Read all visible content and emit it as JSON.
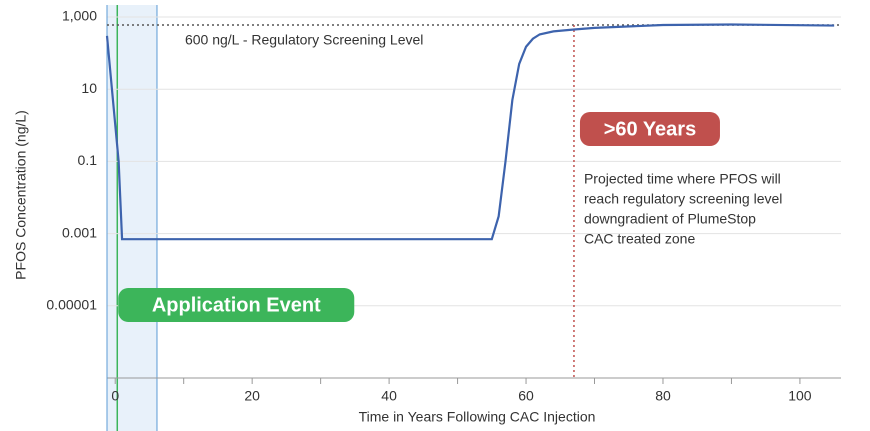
{
  "chart_data": {
    "type": "line",
    "x_label": "Time in Years Following CAC Injection",
    "y_label": "PFOS Concentration (ng/L)",
    "log_y": true,
    "grid": true,
    "xlim": [
      -1.2,
      106
    ],
    "ylim": [
      1e-07,
      1000
    ],
    "xticks": [
      0,
      20,
      40,
      60,
      80,
      100
    ],
    "x_minor_ticks": [
      10,
      30,
      50,
      70,
      90
    ],
    "yticks": [
      {
        "value": 1000,
        "label": "1,000"
      },
      10,
      0.1,
      0.001,
      1e-05
    ],
    "series": [
      {
        "name": "PFOS",
        "color": "#3d63ad",
        "x": [
          -1.2,
          0.5,
          1,
          55,
          56,
          57,
          58,
          59,
          60,
          61,
          62,
          64,
          67,
          70,
          80,
          90,
          105
        ],
        "values": [
          300,
          0.1,
          0.0007,
          0.0007,
          0.003,
          0.1,
          5,
          50,
          150,
          250,
          330,
          400,
          450,
          500,
          600,
          620,
          580
        ]
      }
    ],
    "threshold": {
      "value": 600,
      "label": "600 ng/L - Regulatory Screening Level",
      "color": "#555"
    },
    "marker": {
      "x": 67,
      "label": ">60 Years",
      "color": "#c0504d",
      "note": [
        "Projected time where PFOS will",
        "reach regulatory screening level",
        "downgradient of PlumeStop",
        "CAC treated zone"
      ]
    },
    "application": {
      "x_start": -1.2,
      "x_end": 6.1,
      "x_line": 0.3,
      "label": "Application Event",
      "color": "#3cb55a",
      "band_color": "#e8f1fa",
      "edge_color": "#5b9bd5"
    }
  }
}
